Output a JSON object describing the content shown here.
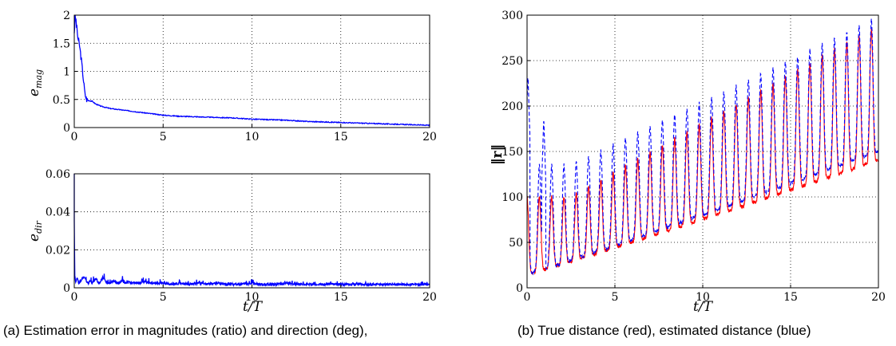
{
  "chart_data": [
    {
      "id": "emag",
      "type": "line",
      "ylabel_base": "e",
      "ylabel_sub": "mag",
      "xlabel": "",
      "xlim": [
        0,
        20
      ],
      "ylim": [
        0,
        2
      ],
      "xticks": [
        "0",
        "5",
        "10",
        "15",
        "20"
      ],
      "yticks": [
        "0",
        "0.5",
        "1",
        "1.5",
        "2"
      ],
      "grid": true,
      "series": [
        {
          "color": "#0000ff",
          "style": "solid",
          "x": [
            0,
            0.05,
            0.1,
            0.2,
            0.3,
            0.4,
            0.5,
            0.6,
            0.7,
            0.8,
            1,
            1.2,
            1.5,
            2,
            3,
            4,
            5,
            6,
            7,
            8,
            9,
            10,
            11,
            12,
            13,
            14,
            15,
            16,
            17,
            18,
            19,
            20
          ],
          "y": [
            1.7,
            1.95,
            1.9,
            1.6,
            1.45,
            1.2,
            0.9,
            0.6,
            0.5,
            0.48,
            0.47,
            0.42,
            0.38,
            0.34,
            0.3,
            0.26,
            0.22,
            0.2,
            0.19,
            0.18,
            0.17,
            0.15,
            0.14,
            0.13,
            0.11,
            0.1,
            0.09,
            0.08,
            0.07,
            0.06,
            0.05,
            0.04
          ]
        }
      ]
    },
    {
      "id": "edir",
      "type": "line",
      "ylabel_base": "e",
      "ylabel_sub": "dir",
      "xlabel": "t/T",
      "xlim": [
        0,
        20
      ],
      "ylim": [
        0,
        0.06
      ],
      "xticks": [
        "0",
        "5",
        "10",
        "15",
        "20"
      ],
      "yticks": [
        "0",
        "0.02",
        "0.04",
        "0.06"
      ],
      "grid": true,
      "series": [
        {
          "color": "#0000ff",
          "style": "solid",
          "x": [
            0,
            0.03,
            0.08,
            0.15,
            0.25,
            0.4,
            0.55,
            0.7,
            0.8,
            0.9,
            1.0,
            1.2,
            1.4,
            1.6,
            1.8,
            2.0,
            2.2,
            2.5,
            2.7,
            2.8,
            3.0,
            3.5,
            4.0,
            4.5,
            5.0,
            5.5,
            6.0,
            6.5,
            7.0,
            7.5,
            8.0,
            8.5,
            9.0,
            9.5,
            10.0,
            10.5,
            11.0,
            11.5,
            12.0,
            12.5,
            13.0,
            13.5,
            14.0,
            14.5,
            15.0,
            15.5,
            16.0,
            16.5,
            17.0,
            17.5,
            18.0,
            18.5,
            19.0,
            19.5,
            20.0
          ],
          "y": [
            0.06,
            0.01,
            0.004,
            0.008,
            0.003,
            0.006,
            0.009,
            0.004,
            0.003,
            0.005,
            0.003,
            0.007,
            0.003,
            0.008,
            0.004,
            0.003,
            0.005,
            0.003,
            0.006,
            0.003,
            0.004,
            0.003,
            0.004,
            0.003,
            0.003,
            0.002,
            0.003,
            0.002,
            0.003,
            0.002,
            0.003,
            0.002,
            0.002,
            0.002,
            0.003,
            0.002,
            0.002,
            0.002,
            0.003,
            0.002,
            0.002,
            0.002,
            0.002,
            0.002,
            0.002,
            0.002,
            0.002,
            0.002,
            0.002,
            0.002,
            0.002,
            0.002,
            0.002,
            0.002,
            0.002
          ]
        }
      ]
    },
    {
      "id": "dist",
      "type": "line",
      "ylabel": "‖r‖",
      "xlabel": "t/T",
      "xlim": [
        0,
        20
      ],
      "ylim": [
        0,
        300
      ],
      "xticks": [
        "0",
        "5",
        "10",
        "15",
        "20"
      ],
      "yticks": [
        "0",
        "50",
        "100",
        "150",
        "200",
        "250",
        "300"
      ],
      "grid": true,
      "series": [
        {
          "color": "#ff0000",
          "style": "solid",
          "model": {
            "period": 0.7,
            "trough": [
              15,
              140
            ],
            "peak": [
              100,
              290
            ]
          }
        },
        {
          "color": "#0000ff",
          "style": "dashed",
          "model": {
            "period": 0.7,
            "trough": [
              15,
              150
            ],
            "peak": [
              135,
              298
            ],
            "spikes": [
              [
                0.05,
                235
              ],
              [
                0.95,
                187
              ]
            ]
          }
        }
      ]
    }
  ],
  "captions": {
    "a": "(a) Estimation error in magnitudes (ratio) and direction (deg),",
    "b": "(b) True distance (red), estimated distance (blue)"
  }
}
